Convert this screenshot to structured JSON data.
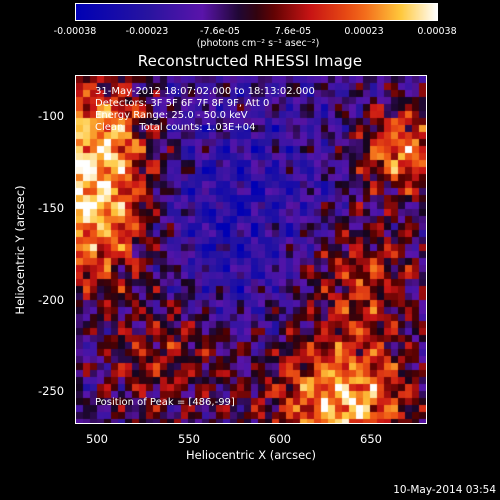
{
  "colorbar": {
    "ticks": [
      "-0.00038",
      "-0.00023",
      "-7.6e-05",
      "7.6e-05",
      "0.00023",
      "0.00038"
    ],
    "units": "(photons cm⁻² s⁻¹ asec⁻²)",
    "range": [
      -0.00038,
      0.00038
    ]
  },
  "chart_data": {
    "type": "heatmap",
    "title": "Reconstructed RHESSI Image",
    "xlabel": "Heliocentric X (arcsec)",
    "ylabel": "Heliocentric Y (arcsec)",
    "xlim": [
      488,
      680
    ],
    "ylim": [
      -271,
      -80
    ],
    "xticks": [
      "500",
      "550",
      "600",
      "650"
    ],
    "yticks": [
      "-100",
      "-150",
      "-200",
      "-250"
    ],
    "peak": [
      486,
      -99
    ],
    "annotations": {
      "time": "31-May-2012 18:07:02.000 to 18:13:02.000",
      "detectors": "Detectors: 3F 5F 6F 7F 8F 9F, Att 0",
      "energy": "Energy Range: 25.0 - 50.0 keV",
      "clean": "Clean     Total counts: 1.03E+04",
      "peak_label": "Position of Peak = [486,-99]"
    },
    "grid": false
  },
  "footer": {
    "date": "10-May-2014 03:54"
  }
}
